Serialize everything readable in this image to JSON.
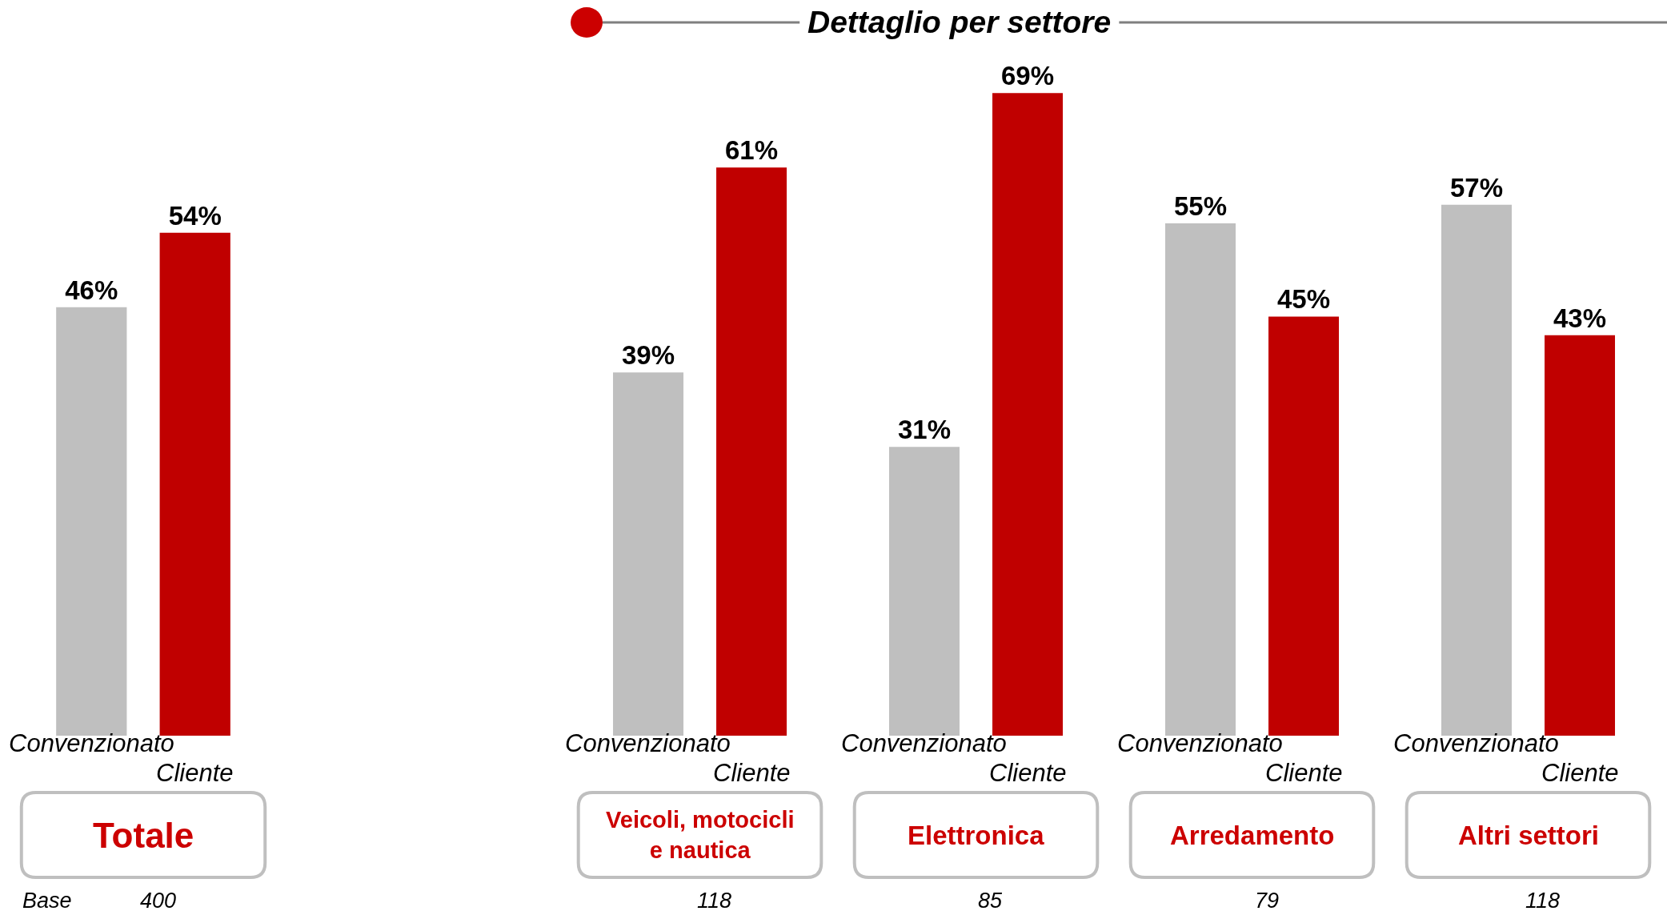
{
  "chart_data": [
    {
      "type": "bar",
      "categories": [
        "Totale"
      ],
      "tick_labels": "x",
      "series": [
        {
          "name": "Convenzionato",
          "color": "#bfbfbf",
          "values": [
            46
          ],
          "value_labels": [
            "46%"
          ]
        },
        {
          "name": "Cliente",
          "color": "#c00000",
          "values": [
            54
          ],
          "value_labels": [
            "54%"
          ]
        }
      ],
      "annotations": [
        "Base",
        "400"
      ]
    },
    {
      "type": "bar",
      "title": "Dettaglio per settore",
      "categories": [
        "Veicoli, motocicli e nautica",
        "Elettronica",
        "Arredamento",
        "Altri settori"
      ],
      "tick_labels": "x",
      "series": [
        {
          "name": "Convenzionato",
          "color": "#bfbfbf",
          "values": [
            39,
            31,
            55,
            57
          ],
          "value_labels": [
            "39%",
            "31%",
            "55%",
            "57%"
          ]
        },
        {
          "name": "Cliente",
          "color": "#c00000",
          "values": [
            61,
            69,
            45,
            43
          ],
          "value_labels": [
            "61%",
            "69%",
            "45%",
            "43%"
          ]
        }
      ],
      "annotations": [
        "118",
        "85",
        "79",
        "118"
      ]
    }
  ]
}
